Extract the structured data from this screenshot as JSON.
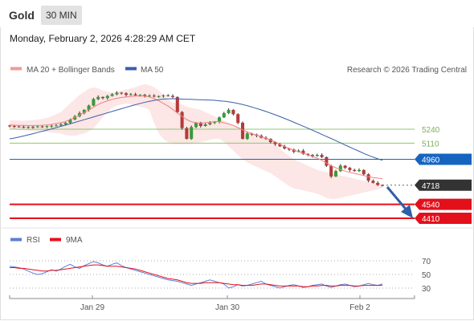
{
  "header": {
    "instrument": "Gold",
    "interval": "30 MIN"
  },
  "timestamp": "Monday, February 2, 2026 4:28:29 AM CET",
  "copyright": "Research © 2026 Trading Central",
  "legend": {
    "ma_bollinger": "MA 20 + Bollinger Bands",
    "ma50": "MA 50",
    "rsi": "RSI",
    "rsi_ma": "9MA"
  },
  "colors": {
    "bollinger": "#f39999",
    "ma50": "#3a5ea8",
    "up": "#3a9a3a",
    "down": "#b53a3a",
    "support": "#e3101c",
    "pivot": "#1565c0",
    "last": "#333333",
    "resistance": "#8cc870",
    "rsi": "#5b7fd8",
    "rsi_ma": "#e3101c"
  },
  "chart_data": [
    {
      "type": "line",
      "name": "Gold 30 MIN price",
      "x_ticks": [
        "Jan 29",
        "Jan 30",
        "Feb 2"
      ],
      "levels": [
        {
          "value": 5240,
          "label": "5240",
          "kind": "resistance"
        },
        {
          "value": 5110,
          "label": "5110",
          "kind": "resistance"
        },
        {
          "value": 4960,
          "label": "4960",
          "kind": "pivot"
        },
        {
          "value": 4718,
          "label": "4718",
          "kind": "last"
        },
        {
          "value": 4540,
          "label": "4540",
          "kind": "support"
        },
        {
          "value": 4410,
          "label": "4410",
          "kind": "support"
        }
      ],
      "close": [
        5270,
        5265,
        5262,
        5258,
        5262,
        5260,
        5265,
        5262,
        5268,
        5272,
        5275,
        5285,
        5300,
        5330,
        5360,
        5390,
        5420,
        5460,
        5520,
        5540,
        5530,
        5550,
        5565,
        5580,
        5575,
        5560,
        5565,
        5555,
        5560,
        5550,
        5552,
        5545,
        5548,
        5555,
        5550,
        5540,
        5400,
        5250,
        5150,
        5260,
        5300,
        5270,
        5285,
        5300,
        5310,
        5350,
        5390,
        5420,
        5380,
        5300,
        5150,
        5200,
        5190,
        5180,
        5160,
        5150,
        5120,
        5100,
        5080,
        5060,
        5050,
        5030,
        5040,
        5010,
        5000,
        4990,
        5000,
        4980,
        4900,
        4800,
        4850,
        4900,
        4880,
        4860,
        4850,
        4860,
        4820,
        4760,
        4740,
        4720,
        4718
      ],
      "ma20": [
        5280,
        5278,
        5276,
        5275,
        5274,
        5274,
        5275,
        5277,
        5280,
        5285,
        5292,
        5300,
        5312,
        5330,
        5350,
        5372,
        5395,
        5420,
        5445,
        5470,
        5490,
        5505,
        5518,
        5528,
        5535,
        5540,
        5545,
        5548,
        5549,
        5548,
        5540,
        5525,
        5505,
        5480,
        5455,
        5425,
        5390,
        5360,
        5330,
        5310,
        5300,
        5298,
        5300,
        5305,
        5310,
        5312,
        5300,
        5290,
        5275,
        5255,
        5235,
        5215,
        5200,
        5185,
        5170,
        5155,
        5140,
        5120,
        5100,
        5080,
        5060,
        5045,
        5030,
        5015,
        5000,
        4985,
        4970,
        4950,
        4925,
        4900,
        4880,
        4865,
        4850,
        4838,
        4828,
        4818,
        4808,
        4798,
        4790,
        4784,
        4780
      ],
      "ma50": [
        5150,
        5160,
        5172,
        5185,
        5198,
        5212,
        5226,
        5240,
        5255,
        5270,
        5285,
        5300,
        5316,
        5332,
        5348,
        5364,
        5380,
        5396,
        5412,
        5428,
        5444,
        5460,
        5474,
        5488,
        5500,
        5510,
        5518,
        5522,
        5524,
        5522,
        5520,
        5518,
        5516,
        5514,
        5512,
        5510,
        5505,
        5500,
        5492,
        5482,
        5470,
        5456,
        5440,
        5423,
        5405,
        5386,
        5366,
        5345,
        5323,
        5300,
        5277,
        5254,
        5230,
        5206,
        5182,
        5158,
        5133,
        5108,
        5083,
        5058,
        5034,
        5010,
        4988,
        4968,
        4950
      ],
      "bb_upper": [
        5320,
        5322,
        5320,
        5318,
        5322,
        5325,
        5330,
        5335,
        5345,
        5360,
        5380,
        5400,
        5440,
        5480,
        5520,
        5560,
        5590,
        5615,
        5630,
        5620,
        5600,
        5590,
        5580,
        5590,
        5600,
        5610,
        5620,
        5630,
        5650,
        5660,
        5650,
        5630,
        5600,
        5560,
        5520,
        5490,
        5480,
        5470,
        5450,
        5440,
        5430,
        5420,
        5400,
        5380,
        5360,
        5340,
        5320,
        5300,
        5280,
        5260,
        5240,
        5220,
        5200,
        5180,
        5170,
        5160,
        5140,
        5100,
        5060,
        5020,
        4990,
        4960,
        4940,
        4920,
        4900,
        4880,
        4860,
        4850,
        4840,
        4830,
        4820,
        4810,
        4800,
        4790,
        4780,
        4770,
        4760,
        4750,
        4740,
        4730,
        4720
      ],
      "bb_lower": [
        5240,
        5236,
        5232,
        5230,
        5226,
        5222,
        5220,
        5218,
        5215,
        5210,
        5205,
        5200,
        5185,
        5180,
        5180,
        5190,
        5200,
        5220,
        5250,
        5300,
        5350,
        5400,
        5440,
        5460,
        5470,
        5480,
        5470,
        5460,
        5450,
        5440,
        5420,
        5300,
        5200,
        5150,
        5120,
        5100,
        5100,
        5100,
        5100,
        5100,
        5110,
        5120,
        5130,
        5140,
        5150,
        5150,
        5120,
        5080,
        5040,
        5000,
        4960,
        4930,
        4910,
        4890,
        4870,
        4850,
        4830,
        4800,
        4770,
        4740,
        4710,
        4690,
        4680,
        4670,
        4660,
        4650,
        4640,
        4620,
        4600,
        4590,
        4590,
        4600,
        4610,
        4620,
        4630,
        4640,
        4650,
        4660,
        4670,
        4680,
        4690
      ]
    },
    {
      "type": "line",
      "name": "RSI",
      "y_ticks": [
        70,
        50,
        30
      ],
      "rsi": [
        62,
        61,
        60,
        58,
        55,
        52,
        50,
        51,
        54,
        57,
        55,
        58,
        62,
        65,
        61,
        59,
        63,
        66,
        69,
        67,
        64,
        62,
        65,
        67,
        63,
        60,
        58,
        56,
        54,
        52,
        50,
        48,
        46,
        44,
        42,
        41,
        40,
        38,
        36,
        34,
        36,
        38,
        40,
        42,
        40,
        38,
        36,
        30,
        32,
        35,
        33,
        34,
        36,
        38,
        40,
        36,
        34,
        32,
        30,
        32,
        34,
        35,
        33,
        31,
        32,
        34,
        35,
        36,
        33,
        31,
        33,
        35,
        36,
        34,
        32,
        33,
        35,
        37,
        35,
        34,
        36
      ],
      "rsi_ma": [
        60,
        60,
        59,
        59,
        58,
        57,
        56,
        55,
        55,
        56,
        56,
        57,
        58,
        59,
        60,
        61,
        62,
        63,
        64,
        64,
        63,
        62,
        62,
        62,
        61,
        60,
        59,
        58,
        56,
        54,
        52,
        50,
        48,
        46,
        44,
        43,
        42,
        40,
        38,
        37,
        37,
        37,
        38,
        38,
        38,
        38,
        37,
        36,
        35,
        35,
        34,
        34,
        34,
        35,
        36,
        36,
        35,
        34,
        33,
        33,
        33,
        33,
        33,
        32,
        32,
        33,
        33,
        34,
        34,
        33,
        33,
        34,
        34,
        34,
        33,
        33,
        34,
        34,
        34,
        34,
        34
      ]
    }
  ]
}
